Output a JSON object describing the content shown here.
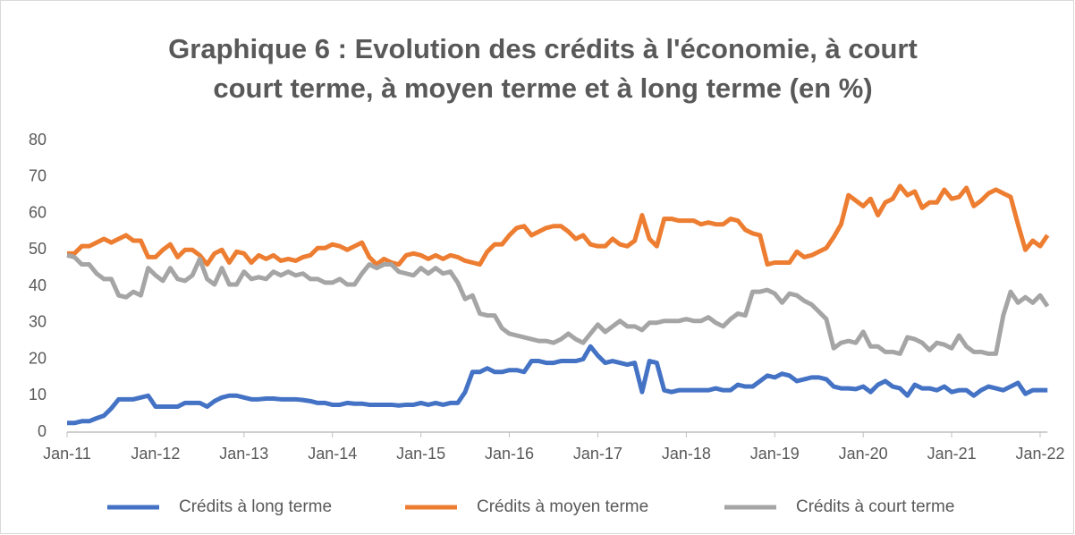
{
  "chart_data": {
    "type": "line",
    "title": [
      "Graphique 6 : Evolution des crédits à l'économie, à court",
      "court terme, à moyen terme et à long terme (en %)"
    ],
    "categories": [
      "Jan-11",
      null,
      null,
      null,
      null,
      null,
      null,
      null,
      null,
      null,
      null,
      null,
      "Jan-12",
      null,
      null,
      null,
      null,
      null,
      null,
      null,
      null,
      null,
      null,
      null,
      "Jan-13",
      null,
      null,
      null,
      null,
      null,
      null,
      null,
      null,
      null,
      null,
      null,
      "Jan-14",
      null,
      null,
      null,
      null,
      null,
      null,
      null,
      null,
      null,
      null,
      null,
      "Jan-15",
      null,
      null,
      null,
      null,
      null,
      null,
      null,
      null,
      null,
      null,
      null,
      "Jan-16",
      null,
      null,
      null,
      null,
      null,
      null,
      null,
      null,
      null,
      null,
      null,
      "Jan-17",
      null,
      null,
      null,
      null,
      null,
      null,
      null,
      null,
      null,
      null,
      null,
      "Jan-18",
      null,
      null,
      null,
      null,
      null,
      null,
      null,
      null,
      null,
      null,
      null,
      "Jan-19",
      null,
      null,
      null,
      null,
      null,
      null,
      null,
      null,
      null,
      null,
      null,
      "Jan-20",
      null,
      null,
      null,
      null,
      null,
      null,
      null,
      null,
      null,
      null,
      null,
      "Jan-21",
      null,
      null,
      null,
      null,
      null,
      null,
      null,
      null,
      null,
      null,
      null,
      "Jan-22",
      null
    ],
    "series": [
      {
        "name": "Crédits à long terme",
        "color": "#4472c4",
        "values": [
          2.5,
          2.5,
          3,
          3,
          3.8,
          4.5,
          6.5,
          9,
          9,
          9,
          9.5,
          10,
          7,
          7,
          7,
          7,
          8,
          8,
          8,
          7,
          8.5,
          9.5,
          10,
          10,
          9.5,
          9,
          9,
          9.2,
          9.2,
          9,
          9,
          9,
          8.8,
          8.5,
          8,
          8,
          7.5,
          7.5,
          8,
          7.8,
          7.8,
          7.5,
          7.5,
          7.5,
          7.5,
          7.3,
          7.5,
          7.5,
          8,
          7.5,
          8,
          7.5,
          8,
          8,
          11,
          16.5,
          16.5,
          17.5,
          16.5,
          16.5,
          17,
          17,
          16.5,
          19.5,
          19.5,
          19,
          19,
          19.5,
          19.5,
          19.5,
          20,
          23.5,
          21,
          19,
          19.5,
          19,
          18.5,
          19,
          11,
          19.5,
          19,
          11.5,
          11,
          11.5,
          11.5,
          11.5,
          11.5,
          11.5,
          12,
          11.5,
          11.5,
          13,
          12.5,
          12.5,
          14,
          15.5,
          15,
          16,
          15.5,
          14,
          14.5,
          15,
          15,
          14.5,
          12.5,
          12,
          12,
          11.8,
          12.5,
          11,
          13,
          14,
          12.5,
          12,
          10,
          13,
          12,
          12,
          11.5,
          12.5,
          11,
          11.5,
          11.5,
          10,
          11.5,
          12.5,
          12,
          11.5,
          12.5,
          13.5,
          10.5,
          11.5,
          11.5,
          11.5
        ]
      },
      {
        "name": "Crédits à moyen terme",
        "color": "#ed7d31",
        "values": [
          49,
          49,
          51,
          51,
          52,
          53,
          52,
          53,
          54,
          52.5,
          52.5,
          48,
          48,
          50,
          51.5,
          48,
          50,
          50,
          48.5,
          46,
          49,
          50,
          46.5,
          49.5,
          49,
          46.5,
          48.5,
          47.5,
          48.5,
          47,
          47.5,
          47,
          48,
          48.5,
          50.5,
          50.5,
          51.5,
          51,
          50,
          51,
          52,
          48,
          46,
          47.5,
          46.5,
          46,
          48.5,
          49,
          48.5,
          47.5,
          48.5,
          47.5,
          48.5,
          48,
          47,
          46.5,
          46,
          49.5,
          51.5,
          51.5,
          54,
          56,
          56.5,
          54,
          55,
          56,
          56.5,
          56.5,
          55,
          53,
          54,
          51.5,
          51,
          51,
          53,
          51.5,
          51,
          52.5,
          59.5,
          53,
          51,
          58.5,
          58.5,
          58,
          58,
          58,
          57,
          57.5,
          57,
          57,
          58.5,
          58,
          55.5,
          54.5,
          54,
          46,
          46.5,
          46.5,
          46.5,
          49.5,
          48,
          48.5,
          49.5,
          50.5,
          53.5,
          57,
          65,
          63.5,
          62,
          64,
          59.5,
          63,
          64,
          67.5,
          65,
          66,
          61.5,
          63,
          63,
          66.5,
          64,
          64.5,
          67,
          62,
          63.5,
          65.5,
          66.5,
          65.5,
          64.5,
          57,
          50,
          52.5,
          51,
          54
        ]
      },
      {
        "name": "Crédits à court terme",
        "color": "#a5a5a5",
        "values": [
          48.5,
          48,
          46,
          46,
          43.5,
          42,
          42,
          37.5,
          37,
          38.5,
          37.5,
          45,
          43,
          41.5,
          45,
          42,
          41.5,
          43,
          47.5,
          42,
          40.5,
          45,
          40.5,
          40.5,
          44,
          42,
          42.5,
          42,
          44,
          43,
          44,
          43,
          43.5,
          42,
          42,
          41,
          41,
          42,
          40.5,
          40.5,
          43.5,
          46,
          45,
          46,
          46,
          44,
          43.5,
          43,
          45,
          43.5,
          45,
          43.5,
          44,
          41,
          36.5,
          37.5,
          32.5,
          32,
          32,
          28.5,
          27,
          26.5,
          26,
          25.5,
          25,
          25,
          24.5,
          25.5,
          27,
          25.5,
          24.5,
          27,
          29.5,
          27.5,
          29,
          30.5,
          29,
          29,
          28,
          30,
          30,
          30.5,
          30.5,
          30.5,
          31,
          30.5,
          30.5,
          31.5,
          30,
          29,
          31,
          32.5,
          32,
          38.5,
          38.5,
          39,
          38,
          35.5,
          38,
          37.5,
          36,
          35,
          33,
          31,
          23,
          24.5,
          25,
          24.5,
          27.5,
          23.5,
          23.5,
          22,
          22,
          21.5,
          26,
          25.5,
          24.5,
          22.5,
          24.5,
          24,
          23,
          26.5,
          23.5,
          22,
          22,
          21.5,
          21.5,
          32,
          38.5,
          35.5,
          37,
          35.5,
          37.5,
          34.5
        ]
      }
    ],
    "ylim": [
      0,
      80
    ],
    "yticks": [
      0,
      10,
      20,
      30,
      40,
      50,
      60,
      70,
      80
    ],
    "grid": false,
    "legend": "bottom"
  }
}
